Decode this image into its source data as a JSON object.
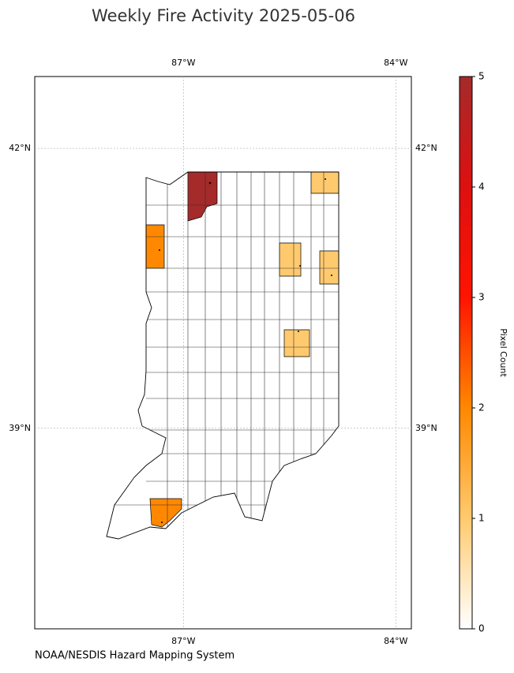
{
  "title": "Weekly Fire Activity 2025-05-06",
  "source": "NOAA/NESDIS Hazard Mapping System",
  "map": {
    "lon_range": [
      -89.1,
      -83.78
    ],
    "lat_range": [
      36.85,
      42.77
    ],
    "lon_ticks": [
      {
        "value": -87,
        "label": "87°W"
      },
      {
        "value": -84,
        "label": "84°W"
      }
    ],
    "lat_ticks": [
      {
        "value": 42,
        "label": "42°N"
      },
      {
        "value": 39,
        "label": "39°N"
      }
    ],
    "grid": true,
    "county_pixel_counts": [
      5,
      2,
      2,
      1,
      1,
      1,
      1
    ]
  },
  "colorbar": {
    "label": "Pixel Count",
    "range": [
      0,
      5
    ],
    "ticks": [
      0,
      1,
      2,
      3,
      4,
      5
    ],
    "colors": [
      "#ffffff",
      "#ffca6e",
      "#ff8800",
      "#ff1400",
      "#dd1010",
      "#a52a2a"
    ]
  }
}
